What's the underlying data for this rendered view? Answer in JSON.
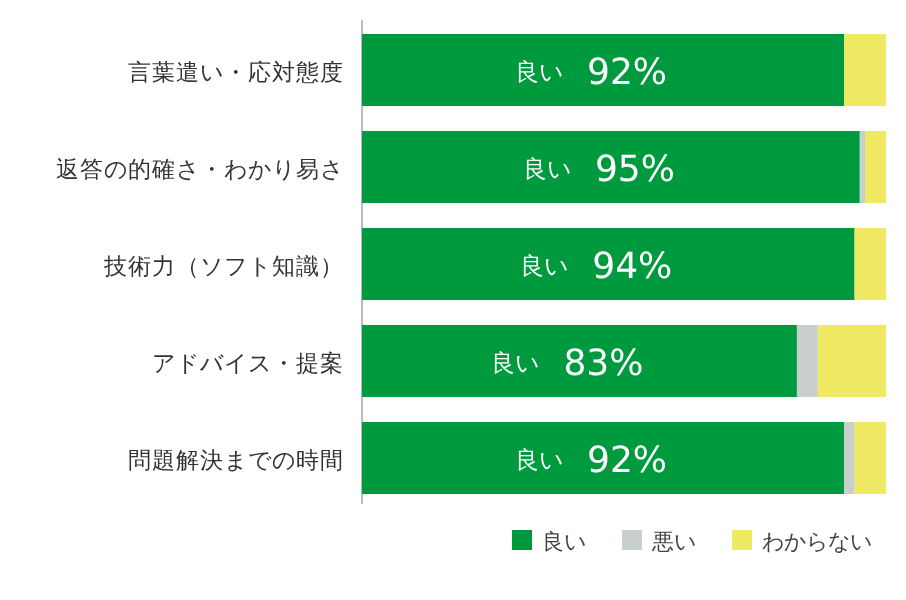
{
  "chart_data": {
    "type": "bar",
    "orientation": "horizontal",
    "stacked": true,
    "legend": "bottom right",
    "xlim": [
      0,
      100
    ],
    "categories": [
      "言葉遣い・応対態度",
      "返答の的確さ・わかり易さ",
      "技術力（ソフト知識）",
      "アドバイス・提案",
      "問題解決までの時間"
    ],
    "series": [
      {
        "name": "良い",
        "color": "#009a3e",
        "values": [
          92,
          95,
          94,
          83,
          92
        ],
        "value_labels": [
          "92%",
          "95%",
          "94%",
          "83%",
          "92%"
        ]
      },
      {
        "name": "悪い",
        "color": "#c9cfcc",
        "values": [
          0,
          1,
          0,
          4,
          2
        ]
      },
      {
        "name": "わからない",
        "color": "#f0e964",
        "values": [
          8,
          4,
          6,
          13,
          6
        ]
      }
    ]
  }
}
